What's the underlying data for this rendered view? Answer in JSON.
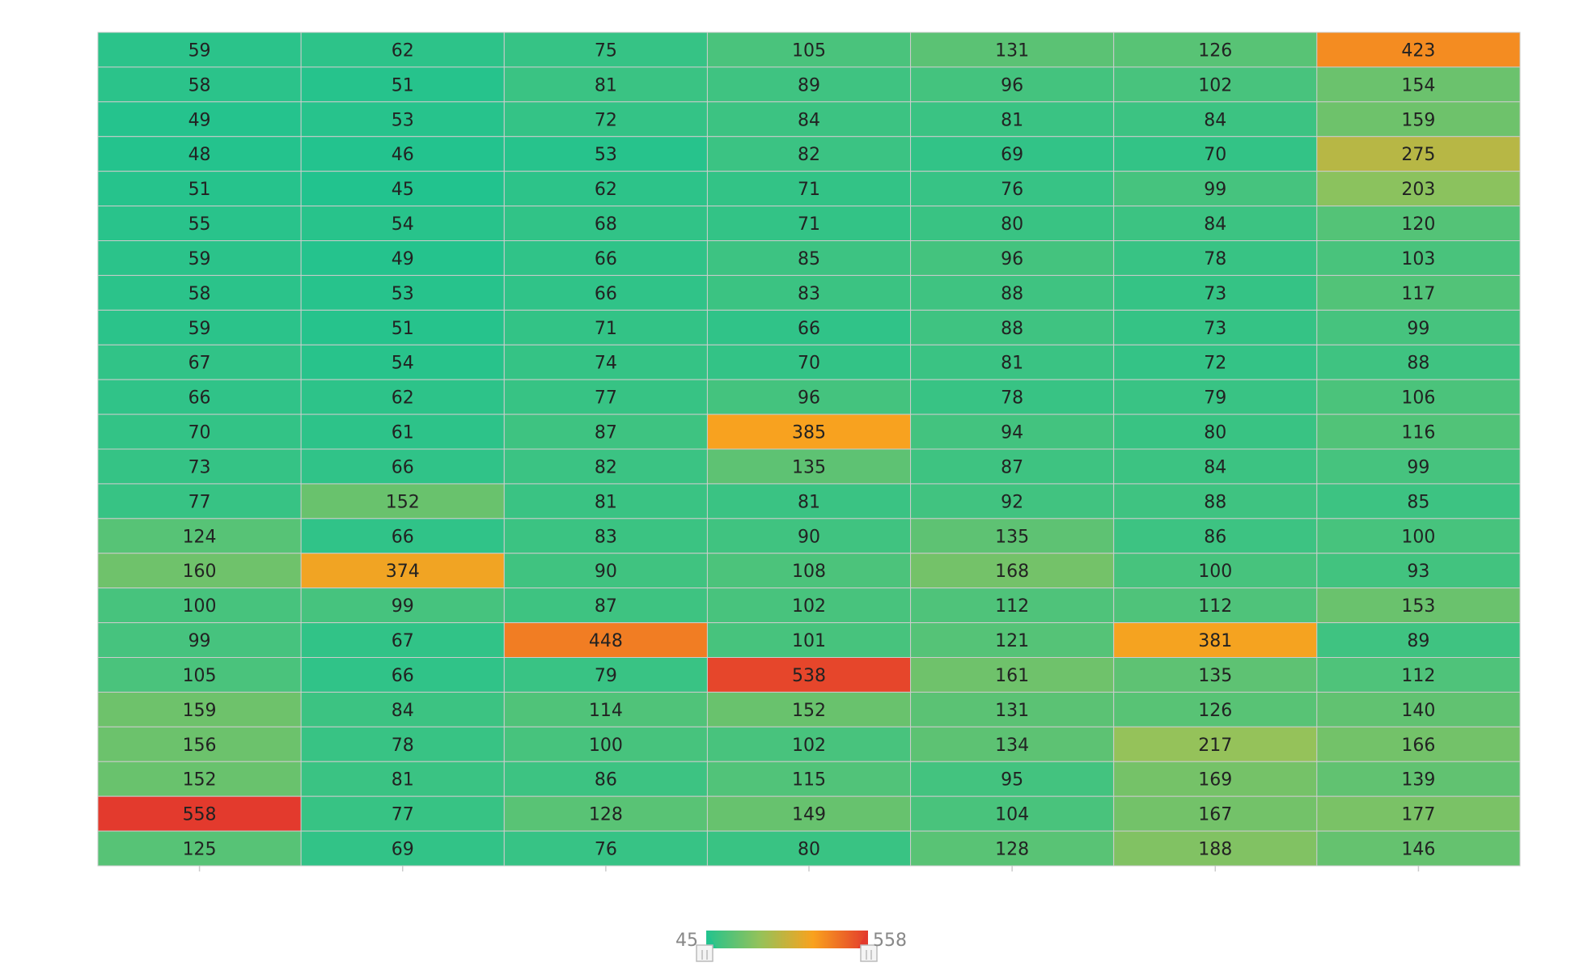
{
  "chart_data": {
    "type": "heatmap",
    "title": "",
    "xlabel": "",
    "ylabel": "",
    "columns": 7,
    "values": [
      [
        59,
        62,
        75,
        105,
        131,
        126,
        423
      ],
      [
        58,
        51,
        81,
        89,
        96,
        102,
        154
      ],
      [
        49,
        53,
        72,
        84,
        81,
        84,
        159
      ],
      [
        48,
        46,
        53,
        82,
        69,
        70,
        275
      ],
      [
        51,
        45,
        62,
        71,
        76,
        99,
        203
      ],
      [
        55,
        54,
        68,
        71,
        80,
        84,
        120
      ],
      [
        59,
        49,
        66,
        85,
        96,
        78,
        103
      ],
      [
        58,
        53,
        66,
        83,
        88,
        73,
        117
      ],
      [
        59,
        51,
        71,
        66,
        88,
        73,
        99
      ],
      [
        67,
        54,
        74,
        70,
        81,
        72,
        88
      ],
      [
        66,
        62,
        77,
        96,
        78,
        79,
        106
      ],
      [
        70,
        61,
        87,
        385,
        94,
        80,
        116
      ],
      [
        73,
        66,
        82,
        135,
        87,
        84,
        99
      ],
      [
        77,
        152,
        81,
        81,
        92,
        88,
        85
      ],
      [
        124,
        66,
        83,
        90,
        135,
        86,
        100
      ],
      [
        160,
        374,
        90,
        108,
        168,
        100,
        93
      ],
      [
        100,
        99,
        87,
        102,
        112,
        112,
        153
      ],
      [
        99,
        67,
        448,
        101,
        121,
        381,
        89
      ],
      [
        105,
        66,
        79,
        538,
        161,
        135,
        112
      ],
      [
        159,
        84,
        114,
        152,
        131,
        126,
        140
      ],
      [
        156,
        78,
        100,
        102,
        134,
        217,
        166
      ],
      [
        152,
        81,
        86,
        115,
        95,
        169,
        139
      ],
      [
        558,
        77,
        128,
        149,
        104,
        167,
        177
      ],
      [
        125,
        69,
        76,
        80,
        128,
        188,
        146
      ]
    ],
    "visual_map": {
      "min": 45,
      "max": 558,
      "min_label": "45",
      "max_label": "558",
      "colors": [
        "#22c38e",
        "#94c25a",
        "#f9a21e",
        "#e33a2d"
      ],
      "placement": "bottom-center"
    },
    "grid": true,
    "cell_border_color": "#cccccc"
  }
}
